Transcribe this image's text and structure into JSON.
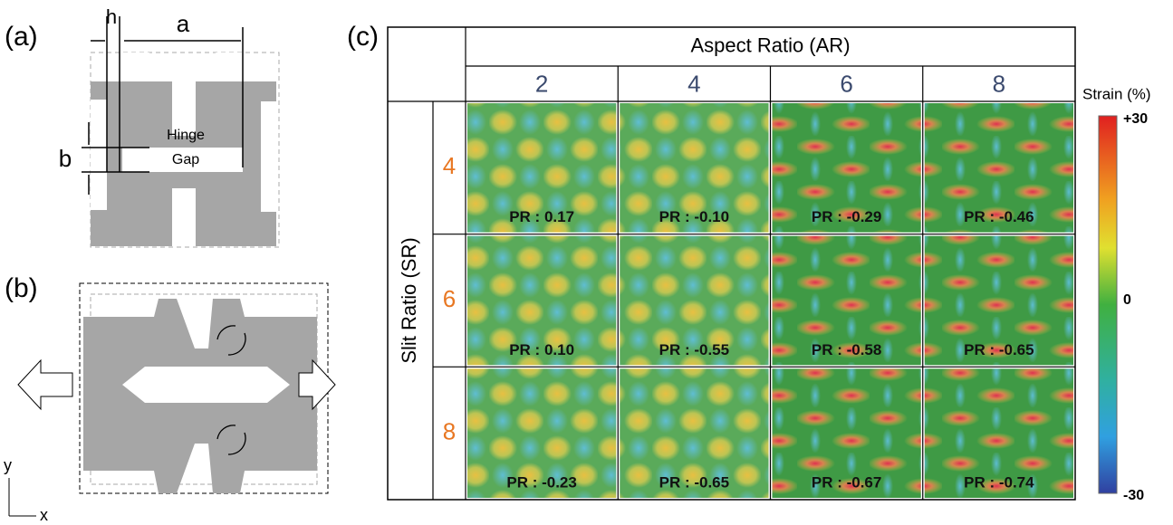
{
  "panel_a": {
    "label": "(a)",
    "h": "h",
    "a": "a",
    "b": "b",
    "hinge": "Hinge",
    "gap": "Gap"
  },
  "panel_b": {
    "label": "(b)",
    "axis_y": "y",
    "axis_x": "x"
  },
  "panel_c": {
    "label": "(c)",
    "column_header": "Aspect Ratio (AR)",
    "columns": [
      2,
      4,
      6,
      8
    ],
    "row_header": "Slit Ratio (SR)",
    "rows": [
      4,
      6,
      8
    ],
    "cells": [
      [
        "PR : 0.17",
        "PR : -0.10",
        "PR : -0.29",
        "PR : -0.46"
      ],
      [
        "PR : 0.10",
        "PR : -0.55",
        "PR : -0.58",
        "PR : -0.65"
      ],
      [
        "PR : -0.23",
        "PR : -0.65",
        "PR : -0.67",
        "PR : -0.74"
      ]
    ]
  },
  "colorbar": {
    "title": "Strain (%)",
    "max": "+30",
    "mid": "0",
    "min": "-30"
  }
}
